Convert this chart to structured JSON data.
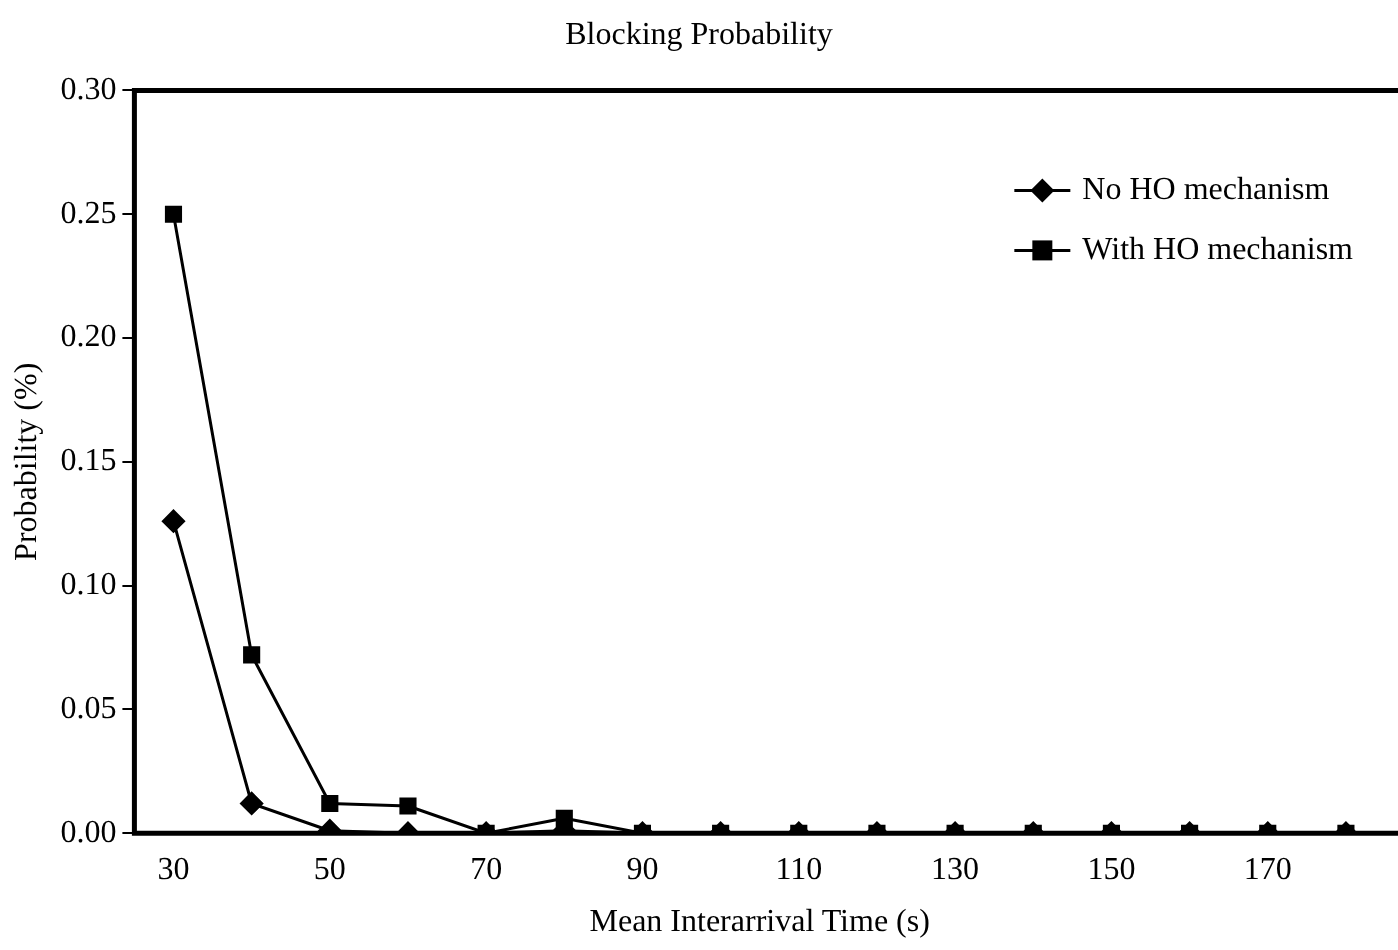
{
  "chart_data": {
    "type": "line",
    "title": "Blocking Probability",
    "xlabel": "Mean Interarrival Time (s)",
    "ylabel": "Probability (%)",
    "categories": [
      "30",
      null,
      "50",
      null,
      "70",
      null,
      "90",
      null,
      "110",
      null,
      "130",
      null,
      "150",
      null,
      "170",
      null
    ],
    "series": [
      {
        "name": "No HO mechanism",
        "color": "#000000",
        "marker": "diamond",
        "values": [
          0.126,
          0.012,
          0.001,
          0.0,
          0.0,
          0.001,
          0.0,
          0.0,
          0.0,
          0.0,
          0.0,
          0.0,
          0.0,
          0.0,
          0.0,
          0.0
        ]
      },
      {
        "name": "With HO mechanism",
        "color": "#000000",
        "marker": "square",
        "values": [
          0.25,
          0.072,
          0.012,
          0.011,
          0.0,
          0.006,
          0.0,
          0.0,
          0.0,
          0.0,
          0.0,
          0.0,
          0.0,
          0.0,
          0.0,
          0.0
        ]
      }
    ],
    "ylim": [
      0,
      0.3
    ],
    "yticks": [
      {
        "value": 0,
        "label": "0.00"
      },
      0.05,
      {
        "value": 0.1,
        "label": "0.10"
      },
      0.15,
      {
        "value": 0.2,
        "label": "0.20"
      },
      0.25,
      {
        "value": 0.3,
        "label": "0.30"
      }
    ],
    "grid": false,
    "legend": "top right",
    "line_style": "solid"
  }
}
